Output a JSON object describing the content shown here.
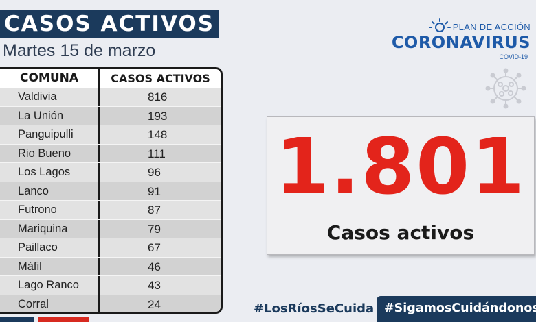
{
  "header": {
    "title": "CASOS ACTIVOS",
    "date": "Martes 15 de marzo"
  },
  "table": {
    "columns": [
      "COMUNA",
      "CASOS ACTIVOS"
    ],
    "rows": [
      {
        "comuna": "Valdivia",
        "casos": "816"
      },
      {
        "comuna": "La Unión",
        "casos": "193"
      },
      {
        "comuna": "Panguipulli",
        "casos": "148"
      },
      {
        "comuna": "Rio Bueno",
        "casos": "111"
      },
      {
        "comuna": "Los Lagos",
        "casos": "96"
      },
      {
        "comuna": "Lanco",
        "casos": "91"
      },
      {
        "comuna": "Futrono",
        "casos": "87"
      },
      {
        "comuna": "Mariquina",
        "casos": "79"
      },
      {
        "comuna": "Paillaco",
        "casos": "67"
      },
      {
        "comuna": "Máfil",
        "casos": "46"
      },
      {
        "comuna": "Lago Ranco",
        "casos": "43"
      },
      {
        "comuna": "Corral",
        "casos": "24"
      }
    ]
  },
  "logo": {
    "top": "PLAN DE ACCIÓN",
    "main": "CORONAVIRUS",
    "sub": "COVID-19"
  },
  "summary": {
    "total": "1.801",
    "label": "Casos activos"
  },
  "hashtags": {
    "first": "#LosRíosSeCuida",
    "second": "#SigamosCuidándonos"
  },
  "colors": {
    "navy": "#1b3a5c",
    "red": "#e3241b",
    "brand_blue": "#1e5aa8"
  },
  "icons": [
    "sun-icon",
    "virus-icon"
  ]
}
